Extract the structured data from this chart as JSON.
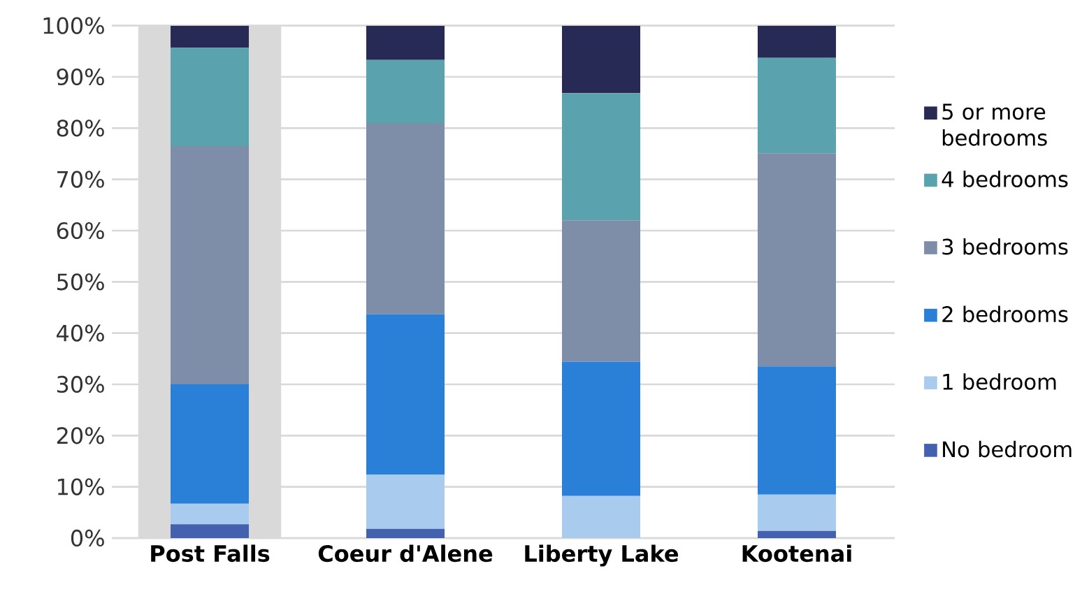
{
  "chart_data": {
    "type": "bar",
    "stacked": true,
    "categories": [
      "Post Falls",
      "Coeur d'Alene",
      "Liberty Lake",
      "Kootenai"
    ],
    "series": [
      {
        "name": "No bedroom",
        "color": "#4361ae",
        "values": [
          2.7,
          1.8,
          0,
          1.4
        ]
      },
      {
        "name": "1 bedroom",
        "color": "#a9cbee",
        "values": [
          4.0,
          10.6,
          8.2,
          7.1
        ]
      },
      {
        "name": "2 bedrooms",
        "color": "#2a7fd6",
        "values": [
          23.4,
          31.3,
          26.2,
          25.0
        ]
      },
      {
        "name": "3 bedrooms",
        "color": "#7f8ea8",
        "values": [
          46.4,
          37.3,
          27.6,
          41.6
        ]
      },
      {
        "name": "4 bedrooms",
        "color": "#5aa2ae",
        "values": [
          19.2,
          12.3,
          24.8,
          18.6
        ]
      },
      {
        "name": "5 or more bedrooms",
        "color": "#262a55",
        "values": [
          4.3,
          6.7,
          13.2,
          6.3
        ]
      }
    ],
    "ylim": [
      0,
      100
    ],
    "yticks": [
      {
        "value": 0,
        "label": "0%"
      },
      {
        "value": 10,
        "label": "10%"
      },
      {
        "value": 20,
        "label": "20%"
      },
      {
        "value": 30,
        "label": "30%"
      },
      {
        "value": 40,
        "label": "40%"
      },
      {
        "value": 50,
        "label": "50%"
      },
      {
        "value": 60,
        "label": "60%"
      },
      {
        "value": 70,
        "label": "70%"
      },
      {
        "value": 80,
        "label": "80%"
      },
      {
        "value": 90,
        "label": "90%"
      },
      {
        "value": 100,
        "label": "100%"
      }
    ],
    "grid": "y",
    "legend": "right",
    "bands": [
      {
        "axis": "x",
        "from": "Post Falls",
        "to": "Post Falls",
        "color": "#d9d9d9"
      }
    ]
  }
}
